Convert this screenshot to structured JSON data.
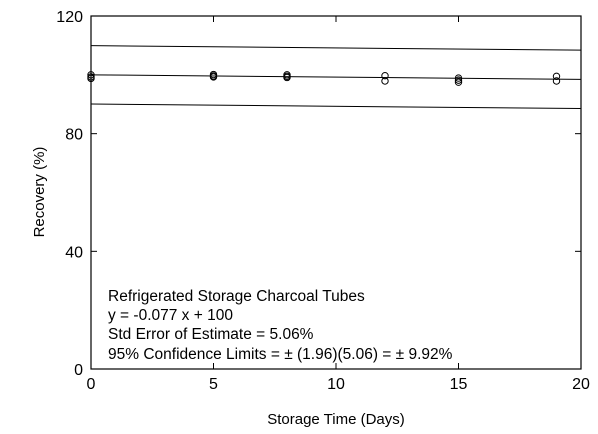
{
  "chart_data": {
    "type": "scatter",
    "xlabel": "Storage Time (Days)",
    "ylabel": "Recovery (%)",
    "xlim": [
      0,
      20
    ],
    "ylim": [
      0,
      120
    ],
    "x_ticks": [
      0,
      5,
      10,
      15,
      20
    ],
    "y_ticks": [
      0,
      40,
      80,
      120
    ],
    "grid": false,
    "points": [
      {
        "x": 0,
        "y": 100.0
      },
      {
        "x": 0,
        "y": 99.3
      },
      {
        "x": 0,
        "y": 98.8
      },
      {
        "x": 5,
        "y": 100.1
      },
      {
        "x": 5,
        "y": 99.6
      },
      {
        "x": 5,
        "y": 99.3
      },
      {
        "x": 8,
        "y": 100.0
      },
      {
        "x": 8,
        "y": 99.5
      },
      {
        "x": 8,
        "y": 99.1
      },
      {
        "x": 12,
        "y": 99.7
      },
      {
        "x": 12,
        "y": 97.9
      },
      {
        "x": 15,
        "y": 98.9
      },
      {
        "x": 15,
        "y": 98.2
      },
      {
        "x": 15,
        "y": 97.5
      },
      {
        "x": 19,
        "y": 99.5
      },
      {
        "x": 19,
        "y": 97.9
      }
    ],
    "regression": {
      "slope": -0.077,
      "intercept": 100,
      "x_range": [
        0,
        20
      ]
    },
    "confidence_band": 9.92,
    "annotation": [
      "Refrigerated Storage Charcoal Tubes",
      "y = -0.077 x + 100",
      "Std Error of Estimate = 5.06%",
      "95% Confidence Limits = ± (1.96)(5.06) = ± 9.92%"
    ]
  }
}
